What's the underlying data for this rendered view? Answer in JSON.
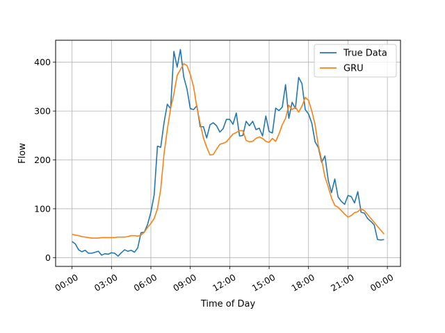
{
  "chart_data": {
    "type": "line",
    "title": "",
    "xlabel": "Time of Day",
    "ylabel": "Flow",
    "x_unit": "hours",
    "xlim": [
      -1.25,
      25
    ],
    "ylim": [
      -18,
      445
    ],
    "x_ticks": [
      {
        "value": 0,
        "label": "00:00"
      },
      {
        "value": 3,
        "label": "03:00"
      },
      {
        "value": 6,
        "label": "06:00"
      },
      {
        "value": 9,
        "label": "09:00"
      },
      {
        "value": 12,
        "label": "12:00"
      },
      {
        "value": 15,
        "label": "15:00"
      },
      {
        "value": 18,
        "label": "18:00"
      },
      {
        "value": 21,
        "label": "21:00"
      },
      {
        "value": 24,
        "label": "00:00"
      }
    ],
    "y_ticks": [
      0,
      100,
      200,
      300,
      400
    ],
    "grid": true,
    "legend": {
      "placement": "top-right"
    },
    "series": [
      {
        "name": "True Data",
        "color": "#1f77b4",
        "points": [
          [
            0.0,
            33
          ],
          [
            0.25,
            28
          ],
          [
            0.5,
            16
          ],
          [
            0.75,
            12
          ],
          [
            1.0,
            15
          ],
          [
            1.25,
            9
          ],
          [
            1.5,
            9
          ],
          [
            1.75,
            11
          ],
          [
            2.0,
            13
          ],
          [
            2.25,
            5
          ],
          [
            2.5,
            8
          ],
          [
            2.75,
            7
          ],
          [
            3.0,
            10
          ],
          [
            3.25,
            9
          ],
          [
            3.5,
            3
          ],
          [
            3.75,
            10
          ],
          [
            4.0,
            16
          ],
          [
            4.25,
            13
          ],
          [
            4.5,
            15
          ],
          [
            4.75,
            11
          ],
          [
            5.0,
            20
          ],
          [
            5.25,
            51
          ],
          [
            5.5,
            52
          ],
          [
            5.75,
            68
          ],
          [
            6.0,
            93
          ],
          [
            6.25,
            128
          ],
          [
            6.5,
            228
          ],
          [
            6.75,
            226
          ],
          [
            7.0,
            276
          ],
          [
            7.25,
            314
          ],
          [
            7.5,
            305
          ],
          [
            7.75,
            422
          ],
          [
            8.0,
            390
          ],
          [
            8.25,
            426
          ],
          [
            8.5,
            370
          ],
          [
            8.75,
            345
          ],
          [
            9.0,
            305
          ],
          [
            9.25,
            303
          ],
          [
            9.5,
            311
          ],
          [
            9.75,
            268
          ],
          [
            10.0,
            268
          ],
          [
            10.25,
            245
          ],
          [
            10.5,
            272
          ],
          [
            10.75,
            276
          ],
          [
            11.0,
            270
          ],
          [
            11.25,
            257
          ],
          [
            11.5,
            264
          ],
          [
            11.75,
            283
          ],
          [
            12.0,
            283
          ],
          [
            12.25,
            273
          ],
          [
            12.5,
            296
          ],
          [
            12.75,
            249
          ],
          [
            13.0,
            250
          ],
          [
            13.25,
            279
          ],
          [
            13.5,
            270
          ],
          [
            13.75,
            279
          ],
          [
            14.0,
            262
          ],
          [
            14.25,
            265
          ],
          [
            14.5,
            249
          ],
          [
            14.75,
            290
          ],
          [
            15.0,
            258
          ],
          [
            15.25,
            255
          ],
          [
            15.5,
            306
          ],
          [
            15.75,
            301
          ],
          [
            16.0,
            308
          ],
          [
            16.25,
            354
          ],
          [
            16.5,
            285
          ],
          [
            16.75,
            318
          ],
          [
            17.0,
            305
          ],
          [
            17.25,
            369
          ],
          [
            17.5,
            356
          ],
          [
            17.75,
            303
          ],
          [
            18.0,
            294
          ],
          [
            18.25,
            275
          ],
          [
            18.5,
            237
          ],
          [
            18.75,
            225
          ],
          [
            19.0,
            195
          ],
          [
            19.25,
            208
          ],
          [
            19.5,
            158
          ],
          [
            19.75,
            133
          ],
          [
            20.0,
            161
          ],
          [
            20.25,
            124
          ],
          [
            20.5,
            115
          ],
          [
            20.75,
            109
          ],
          [
            21.0,
            127
          ],
          [
            21.25,
            125
          ],
          [
            21.5,
            112
          ],
          [
            21.75,
            135
          ],
          [
            22.0,
            93
          ],
          [
            22.25,
            91
          ],
          [
            22.5,
            80
          ],
          [
            22.75,
            74
          ],
          [
            23.0,
            67
          ],
          [
            23.25,
            37
          ],
          [
            23.5,
            36
          ],
          [
            23.75,
            37
          ]
        ]
      },
      {
        "name": "GRU",
        "color": "#ff7f0e",
        "points": [
          [
            0.0,
            48
          ],
          [
            0.25,
            46
          ],
          [
            0.5,
            45
          ],
          [
            0.75,
            43
          ],
          [
            1.0,
            42
          ],
          [
            1.25,
            41
          ],
          [
            1.5,
            40
          ],
          [
            1.75,
            40
          ],
          [
            2.0,
            40
          ],
          [
            2.25,
            41
          ],
          [
            2.5,
            41
          ],
          [
            2.75,
            41
          ],
          [
            3.0,
            41
          ],
          [
            3.25,
            41
          ],
          [
            3.5,
            42
          ],
          [
            3.75,
            42
          ],
          [
            4.0,
            42
          ],
          [
            4.25,
            43
          ],
          [
            4.5,
            45
          ],
          [
            4.75,
            45
          ],
          [
            5.0,
            44
          ],
          [
            5.25,
            46
          ],
          [
            5.5,
            52
          ],
          [
            5.75,
            62
          ],
          [
            6.0,
            70
          ],
          [
            6.25,
            80
          ],
          [
            6.5,
            100
          ],
          [
            6.75,
            140
          ],
          [
            7.0,
            212
          ],
          [
            7.25,
            262
          ],
          [
            7.5,
            305
          ],
          [
            7.75,
            335
          ],
          [
            8.0,
            373
          ],
          [
            8.25,
            385
          ],
          [
            8.5,
            397
          ],
          [
            8.75,
            393
          ],
          [
            9.0,
            375
          ],
          [
            9.25,
            350
          ],
          [
            9.5,
            308
          ],
          [
            9.75,
            275
          ],
          [
            10.0,
            245
          ],
          [
            10.25,
            226
          ],
          [
            10.5,
            210
          ],
          [
            10.75,
            211
          ],
          [
            11.0,
            222
          ],
          [
            11.25,
            232
          ],
          [
            11.5,
            234
          ],
          [
            11.75,
            237
          ],
          [
            12.0,
            245
          ],
          [
            12.25,
            253
          ],
          [
            12.5,
            256
          ],
          [
            12.75,
            260
          ],
          [
            13.0,
            260
          ],
          [
            13.25,
            240
          ],
          [
            13.5,
            237
          ],
          [
            13.75,
            238
          ],
          [
            14.0,
            244
          ],
          [
            14.25,
            247
          ],
          [
            14.5,
            244
          ],
          [
            14.75,
            238
          ],
          [
            15.0,
            236
          ],
          [
            15.25,
            244
          ],
          [
            15.5,
            238
          ],
          [
            15.75,
            253
          ],
          [
            16.0,
            272
          ],
          [
            16.25,
            285
          ],
          [
            16.5,
            312
          ],
          [
            16.75,
            303
          ],
          [
            17.0,
            308
          ],
          [
            17.25,
            298
          ],
          [
            17.5,
            310
          ],
          [
            17.75,
            328
          ],
          [
            18.0,
            322
          ],
          [
            18.25,
            300
          ],
          [
            18.5,
            272
          ],
          [
            18.75,
            228
          ],
          [
            19.0,
            200
          ],
          [
            19.25,
            165
          ],
          [
            19.5,
            145
          ],
          [
            19.75,
            122
          ],
          [
            20.0,
            107
          ],
          [
            20.25,
            103
          ],
          [
            20.5,
            96
          ],
          [
            20.75,
            89
          ],
          [
            21.0,
            83
          ],
          [
            21.25,
            86
          ],
          [
            21.5,
            92
          ],
          [
            21.75,
            94
          ],
          [
            22.0,
            100
          ],
          [
            22.25,
            96
          ],
          [
            22.5,
            88
          ],
          [
            22.75,
            80
          ],
          [
            23.0,
            72
          ],
          [
            23.25,
            64
          ],
          [
            23.5,
            56
          ],
          [
            23.75,
            48
          ]
        ]
      }
    ]
  }
}
